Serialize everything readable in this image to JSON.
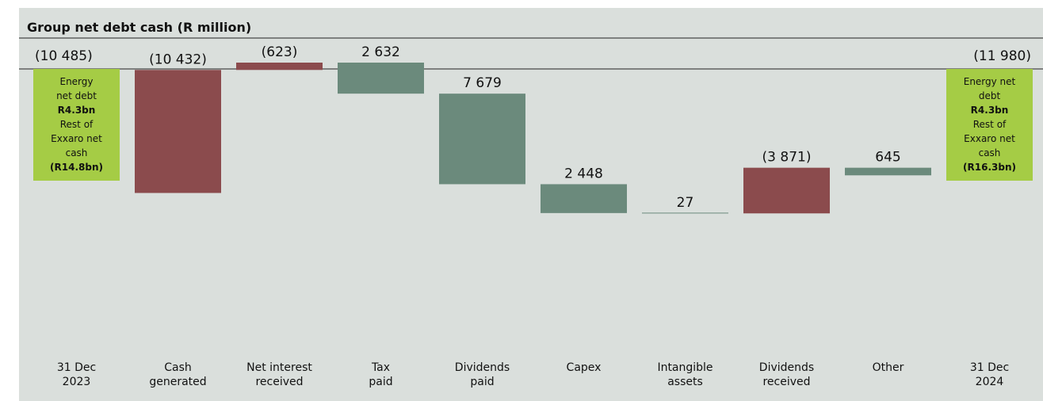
{
  "chart_data": {
    "type": "bar",
    "title": "Group net debt cash (R million)",
    "xlabel": "",
    "ylabel": "",
    "colors": {
      "increase": "#6b8a7c",
      "decrease": "#8b4b4d",
      "total": "#a5cc45"
    },
    "categories": [
      [
        "31 Dec",
        "2023"
      ],
      [
        "Cash",
        "generated"
      ],
      [
        "Net interest",
        "received"
      ],
      [
        "Tax",
        "paid"
      ],
      [
        "Dividends",
        "paid"
      ],
      [
        "Capex",
        ""
      ],
      [
        "Intangible",
        "assets"
      ],
      [
        "Dividends",
        "received"
      ],
      [
        "Other",
        ""
      ],
      [
        "31 Dec",
        "2024"
      ]
    ],
    "values": [
      -10485,
      -10432,
      -623,
      2632,
      7679,
      2448,
      27,
      -3871,
      645,
      -11980
    ],
    "value_labels": [
      "(10 485)",
      "(10 432)",
      "(623)",
      "2 632",
      "7 679",
      "2 448",
      "27",
      "(3 871)",
      "645",
      "(11 980)"
    ],
    "kinds": [
      "total",
      "decrease",
      "decrease",
      "increase",
      "increase",
      "increase",
      "increase",
      "decrease",
      "increase",
      "total"
    ],
    "start_annotation": {
      "lines": [
        {
          "text": "Energy",
          "bold": false
        },
        {
          "text": "net debt",
          "bold": false
        },
        {
          "text": "R4.3bn",
          "bold": true
        },
        {
          "text": "Rest of",
          "bold": false
        },
        {
          "text": "Exxaro net",
          "bold": false
        },
        {
          "text": "cash",
          "bold": false
        },
        {
          "text": "(R14.8bn)",
          "bold": true
        }
      ]
    },
    "end_annotation": {
      "lines": [
        {
          "text": "Energy net",
          "bold": false
        },
        {
          "text": "debt",
          "bold": false
        },
        {
          "text": "R4.3bn",
          "bold": true
        },
        {
          "text": "Rest of",
          "bold": false
        },
        {
          "text": "Exxaro net",
          "bold": false
        },
        {
          "text": "cash",
          "bold": false
        },
        {
          "text": "(R16.3bn)",
          "bold": true
        }
      ]
    }
  }
}
